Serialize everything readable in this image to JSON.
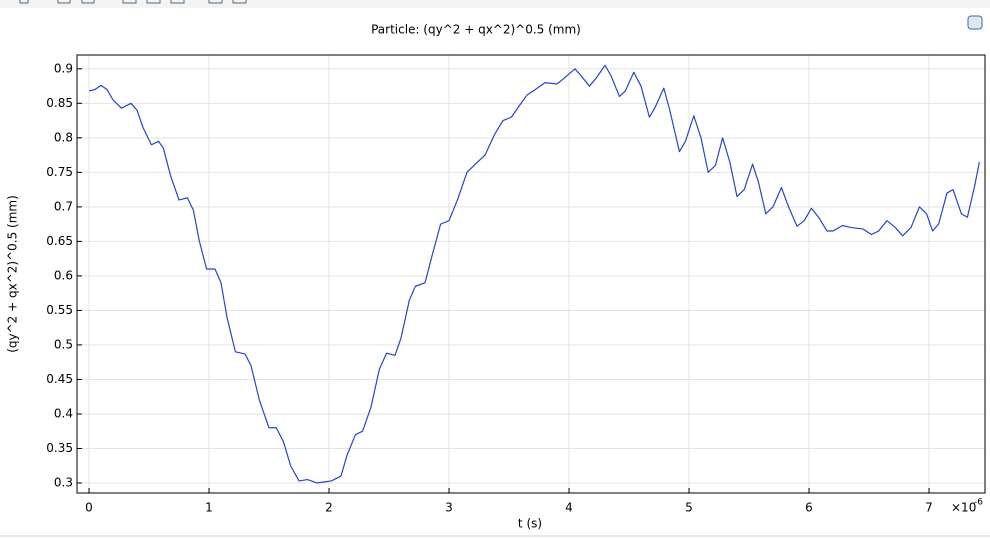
{
  "chart_data": {
    "type": "line",
    "title": "Particle: (qy^2 + qx^2)^0.5 (mm)",
    "x_label": "t (s)",
    "y_label": "(qy^2 + qx^2)^0.5 (mm)",
    "x_scale_base": "×10",
    "x_scale_exponent": "-6",
    "xlim": [
      -0.1,
      7.4667
    ],
    "ylim": [
      0.2855,
      0.92
    ],
    "xticks": [
      0,
      1,
      2,
      3,
      4,
      5,
      6,
      7
    ],
    "yticks": [
      0.3,
      0.35,
      0.4,
      0.45,
      0.5,
      0.55,
      0.6,
      0.65,
      0.7,
      0.75,
      0.8,
      0.85,
      0.9
    ],
    "grid": true,
    "series": [
      {
        "color": "#2447c4",
        "x": [
          0,
          0.05,
          0.1,
          0.15,
          0.2,
          0.27,
          0.35,
          0.4,
          0.45,
          0.52,
          0.58,
          0.62,
          0.68,
          0.75,
          0.82,
          0.87,
          0.92,
          0.98,
          1.05,
          1.1,
          1.15,
          1.22,
          1.3,
          1.35,
          1.42,
          1.5,
          1.56,
          1.62,
          1.68,
          1.75,
          1.82,
          1.9,
          1.98,
          2.02,
          2.1,
          2.15,
          2.22,
          2.28,
          2.35,
          2.42,
          2.48,
          2.55,
          2.6,
          2.67,
          2.72,
          2.8,
          2.86,
          2.93,
          3.0,
          3.07,
          3.15,
          3.22,
          3.3,
          3.38,
          3.45,
          3.52,
          3.58,
          3.65,
          3.72,
          3.8,
          3.9,
          3.95,
          4.05,
          4.1,
          4.17,
          4.22,
          4.3,
          4.35,
          4.42,
          4.47,
          4.54,
          4.6,
          4.67,
          4.72,
          4.79,
          4.84,
          4.92,
          4.97,
          5.04,
          5.1,
          5.16,
          5.22,
          5.28,
          5.34,
          5.4,
          5.46,
          5.53,
          5.58,
          5.64,
          5.7,
          5.77,
          5.83,
          5.9,
          5.96,
          6.02,
          6.08,
          6.15,
          6.2,
          6.28,
          6.35,
          6.45,
          6.52,
          6.58,
          6.65,
          6.72,
          6.78,
          6.85,
          6.92,
          6.98,
          7.03,
          7.08,
          7.15,
          7.2,
          7.27,
          7.32,
          7.38,
          7.42
        ],
        "values": [
          0.868,
          0.87,
          0.876,
          0.87,
          0.855,
          0.843,
          0.85,
          0.84,
          0.815,
          0.79,
          0.795,
          0.785,
          0.745,
          0.71,
          0.713,
          0.695,
          0.65,
          0.61,
          0.61,
          0.59,
          0.54,
          0.49,
          0.487,
          0.47,
          0.42,
          0.38,
          0.38,
          0.36,
          0.325,
          0.303,
          0.305,
          0.3,
          0.302,
          0.303,
          0.31,
          0.34,
          0.37,
          0.375,
          0.41,
          0.465,
          0.488,
          0.485,
          0.51,
          0.565,
          0.585,
          0.59,
          0.63,
          0.675,
          0.68,
          0.71,
          0.75,
          0.762,
          0.775,
          0.805,
          0.825,
          0.83,
          0.845,
          0.862,
          0.87,
          0.88,
          0.878,
          0.885,
          0.9,
          0.89,
          0.875,
          0.885,
          0.905,
          0.89,
          0.86,
          0.868,
          0.895,
          0.875,
          0.83,
          0.845,
          0.872,
          0.84,
          0.78,
          0.795,
          0.832,
          0.8,
          0.75,
          0.76,
          0.8,
          0.765,
          0.715,
          0.725,
          0.762,
          0.735,
          0.69,
          0.7,
          0.728,
          0.7,
          0.672,
          0.68,
          0.698,
          0.685,
          0.665,
          0.665,
          0.673,
          0.67,
          0.668,
          0.66,
          0.665,
          0.68,
          0.67,
          0.658,
          0.67,
          0.7,
          0.69,
          0.665,
          0.675,
          0.72,
          0.725,
          0.69,
          0.685,
          0.73,
          0.765
        ]
      }
    ]
  }
}
